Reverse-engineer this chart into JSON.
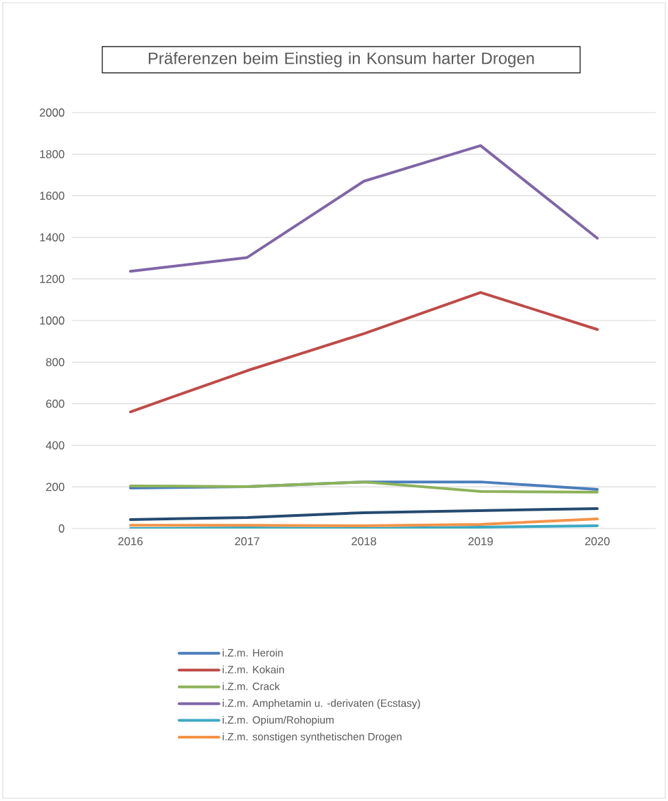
{
  "chart_data": {
    "type": "line",
    "title": "Präferenzen beim Einstieg in Konsum harter Drogen",
    "categories": [
      "2016",
      "2017",
      "2018",
      "2019",
      "2020"
    ],
    "series": [
      {
        "name": "i.Z.m. Heroin",
        "color": "#4a7ebb",
        "values": [
          195,
          201,
          224,
          224,
          188
        ]
      },
      {
        "name": "i.Z.m. Kokain",
        "color": "#be4b48",
        "values": [
          561,
          759,
          937,
          1135,
          957
        ]
      },
      {
        "name": "i.Z.m. Crack",
        "color": "#8db25a",
        "values": [
          205,
          201,
          224,
          178,
          175
        ]
      },
      {
        "name": "i.Z.m. Amphetamin u. -derivaten (Ecstasy)",
        "color": "#7f66a6",
        "values": [
          1237,
          1303,
          1670,
          1841,
          1396
        ]
      },
      {
        "name": "i.Z.m. Opium/Rohopium",
        "color": "#3ca9c4",
        "values": [
          0,
          3,
          0,
          7,
          13
        ]
      },
      {
        "name": "i.Z.m. sonstigen synthetischen Drogen",
        "color": "#f39448",
        "values": [
          16,
          16,
          13,
          20,
          46
        ]
      },
      {
        "color": "#254a6f",
        "values": [
          43,
          53,
          76,
          86,
          96
        ]
      }
    ],
    "ylim": [
      0,
      2000
    ],
    "yticks": [
      0,
      200,
      400,
      600,
      800,
      1000,
      1200,
      1400,
      1600,
      1800,
      2000
    ],
    "grid": "y",
    "legend": "bottom",
    "marker": "none",
    "line_style": "solid"
  }
}
